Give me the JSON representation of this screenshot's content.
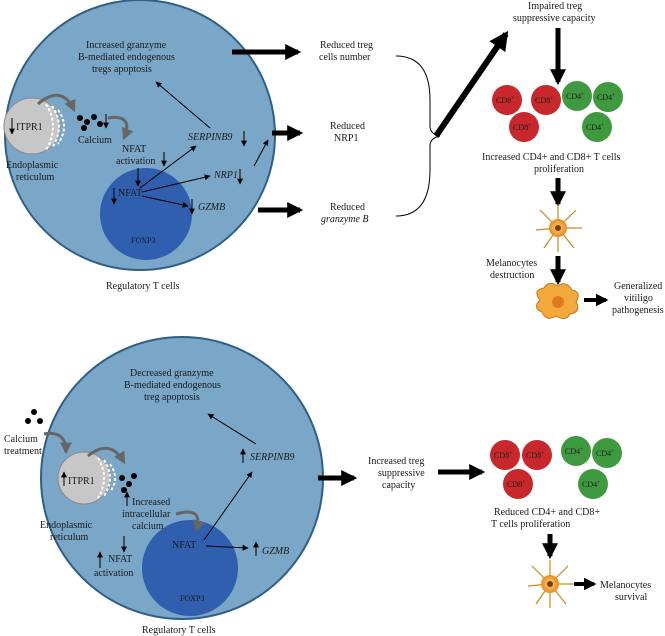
{
  "colors": {
    "cell_fill": "#7aa6c8",
    "cell_stroke": "#2f5f85",
    "nucleus_fill": "#2f5fae",
    "er_fill": "#c7c7c7",
    "cd8_fill": "#c8282b",
    "cd4_fill": "#3f9a3f",
    "arrow": "#000000",
    "melanocyte": "#f3a93b"
  },
  "top_panel": {
    "apoptosis_text": [
      "Increased granzyme",
      "B-mediated endogenous",
      "tregs apoptosis"
    ],
    "itpr1": "ITPR1",
    "calcium": "Calcium",
    "nfat_activation": [
      "NFAT",
      "activation"
    ],
    "er_label": [
      "Endoplasmic",
      "reticulum"
    ],
    "serpinb9": "SERPINB9",
    "nrp1": "NRP1",
    "nfat": "NFAT",
    "gzmb": "GZMB",
    "foxp3": "FOXP3",
    "cell_label": "Regulatory T cells",
    "reduced_treg": [
      "Reduced treg",
      "cells number"
    ],
    "reduced_nrp1": [
      "Reduced",
      "NRP1"
    ],
    "reduced_granzyme": [
      "Reduced",
      "granzyme B"
    ],
    "impaired": [
      "Impaired treg",
      "suppressive capacity"
    ],
    "proliferation": [
      "Increased CD4+ and CD8+ T cells",
      "proliferation"
    ],
    "melanocytes": [
      "Melanocytes",
      "destruction"
    ],
    "vitiligo": [
      "Generalized",
      "vitiligo",
      "pathogenesis"
    ]
  },
  "bottom_panel": {
    "apoptosis_text": [
      "Decreased granzyme",
      "B-mediated endogenous",
      "treg apoptosis"
    ],
    "calcium_treatment": [
      "Calcium",
      "treatment"
    ],
    "itpr1": "ITPR1",
    "increased_calcium": [
      "Increased",
      "intracellular",
      "calcium"
    ],
    "er_label": [
      "Endoplasmic",
      "reticulum"
    ],
    "nfat_activation": [
      "NFAT",
      "activation"
    ],
    "serpinb9": "SERPINB9",
    "nfat": "NFAT",
    "gzmb": "GZMB",
    "foxp3": "FOXP3",
    "cell_label": "Regulatory T cells",
    "increased_treg": [
      "Increased treg",
      "suppressive",
      "capacity"
    ],
    "proliferation": [
      "Reduced CD4+ and CD8+",
      "T cells proliferation"
    ],
    "melanocytes": [
      "Melanocytes",
      "survival"
    ]
  },
  "tcells": {
    "cd8": "CD8",
    "cd4": "CD4",
    "sup": "+"
  }
}
